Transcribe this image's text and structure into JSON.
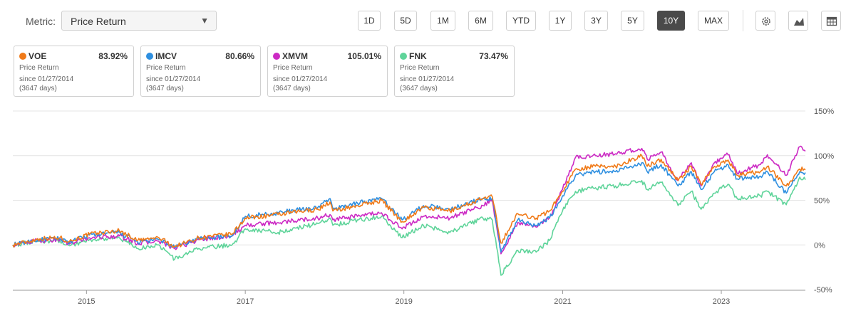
{
  "metric": {
    "label": "Metric:",
    "selected": "Price Return"
  },
  "ranges": [
    {
      "label": "1D",
      "active": false
    },
    {
      "label": "5D",
      "active": false
    },
    {
      "label": "1M",
      "active": false
    },
    {
      "label": "6M",
      "active": false
    },
    {
      "label": "YTD",
      "active": false
    },
    {
      "label": "1Y",
      "active": false
    },
    {
      "label": "3Y",
      "active": false
    },
    {
      "label": "5Y",
      "active": false
    },
    {
      "label": "10Y",
      "active": true
    },
    {
      "label": "MAX",
      "active": false
    }
  ],
  "tools": [
    "settings-icon",
    "area-chart-icon",
    "table-icon"
  ],
  "cards": [
    {
      "ticker": "VOE",
      "ret": "83.92%",
      "metric": "Price Return",
      "since": "since 01/27/2014",
      "days": "(3647 days)",
      "color": "#f07a18"
    },
    {
      "ticker": "IMCV",
      "ret": "80.66%",
      "metric": "Price Return",
      "since": "since 01/27/2014",
      "days": "(3647 days)",
      "color": "#2e8fe0"
    },
    {
      "ticker": "XMVM",
      "ret": "105.01%",
      "metric": "Price Return",
      "since": "since 01/27/2014",
      "days": "(3647 days)",
      "color": "#cc2ac4"
    },
    {
      "ticker": "FNK",
      "ret": "73.47%",
      "metric": "Price Return",
      "since": "since 01/27/2014",
      "days": "(3647 days)",
      "color": "#5fd49a"
    }
  ],
  "chart_data": {
    "type": "line",
    "x_labels": [
      "2015",
      "2017",
      "2019",
      "2021",
      "2023"
    ],
    "y_ticks": [
      150,
      100,
      50,
      0,
      -50
    ],
    "y_tick_labels": [
      "150%",
      "100%",
      "50%",
      "0%",
      "-50%"
    ],
    "ylim": [
      -50,
      150
    ],
    "xlim": [
      "2014-01-27",
      "2024-01-23"
    ],
    "grid": true,
    "series": [
      {
        "name": "VOE",
        "color": "#f07a18",
        "points": [
          [
            "2014-01-27",
            0
          ],
          [
            "2014-06-01",
            7
          ],
          [
            "2014-09-01",
            8
          ],
          [
            "2014-10-15",
            4
          ],
          [
            "2015-01-15",
            12
          ],
          [
            "2015-06-01",
            16
          ],
          [
            "2015-08-25",
            5
          ],
          [
            "2015-12-01",
            8
          ],
          [
            "2016-02-11",
            -2
          ],
          [
            "2016-06-01",
            8
          ],
          [
            "2016-11-01",
            12
          ],
          [
            "2017-01-01",
            30
          ],
          [
            "2017-06-01",
            34
          ],
          [
            "2017-12-01",
            40
          ],
          [
            "2018-01-26",
            48
          ],
          [
            "2018-02-08",
            38
          ],
          [
            "2018-06-01",
            44
          ],
          [
            "2018-09-20",
            50
          ],
          [
            "2018-12-24",
            26
          ],
          [
            "2019-04-01",
            42
          ],
          [
            "2019-08-01",
            38
          ],
          [
            "2019-12-31",
            52
          ],
          [
            "2020-02-12",
            54
          ],
          [
            "2020-03-23",
            2
          ],
          [
            "2020-06-08",
            35
          ],
          [
            "2020-09-01",
            30
          ],
          [
            "2020-11-01",
            38
          ],
          [
            "2020-12-31",
            60
          ],
          [
            "2021-03-01",
            85
          ],
          [
            "2021-06-01",
            88
          ],
          [
            "2021-09-01",
            88
          ],
          [
            "2021-12-31",
            100
          ],
          [
            "2022-01-25",
            88
          ],
          [
            "2022-03-30",
            96
          ],
          [
            "2022-06-16",
            72
          ],
          [
            "2022-08-16",
            88
          ],
          [
            "2022-09-30",
            68
          ],
          [
            "2022-11-30",
            88
          ],
          [
            "2023-02-01",
            95
          ],
          [
            "2023-03-15",
            78
          ],
          [
            "2023-06-30",
            82
          ],
          [
            "2023-08-01",
            88
          ],
          [
            "2023-10-27",
            66
          ],
          [
            "2023-12-28",
            85
          ],
          [
            "2024-01-23",
            84
          ]
        ]
      },
      {
        "name": "IMCV",
        "color": "#2e8fe0",
        "points": [
          [
            "2014-01-27",
            0
          ],
          [
            "2014-06-01",
            6
          ],
          [
            "2014-09-01",
            7
          ],
          [
            "2014-10-15",
            3
          ],
          [
            "2015-01-15",
            11
          ],
          [
            "2015-06-01",
            14
          ],
          [
            "2015-08-25",
            3
          ],
          [
            "2015-12-01",
            6
          ],
          [
            "2016-02-11",
            -3
          ],
          [
            "2016-06-01",
            7
          ],
          [
            "2016-11-01",
            10
          ],
          [
            "2017-01-01",
            32
          ],
          [
            "2017-06-01",
            36
          ],
          [
            "2017-12-01",
            42
          ],
          [
            "2018-01-26",
            52
          ],
          [
            "2018-02-08",
            40
          ],
          [
            "2018-06-01",
            47
          ],
          [
            "2018-09-20",
            52
          ],
          [
            "2018-12-24",
            28
          ],
          [
            "2019-04-01",
            44
          ],
          [
            "2019-08-01",
            40
          ],
          [
            "2019-12-31",
            52
          ],
          [
            "2020-02-12",
            52
          ],
          [
            "2020-03-23",
            -8
          ],
          [
            "2020-06-08",
            28
          ],
          [
            "2020-09-01",
            22
          ],
          [
            "2020-11-01",
            30
          ],
          [
            "2020-12-31",
            55
          ],
          [
            "2021-03-01",
            78
          ],
          [
            "2021-06-01",
            82
          ],
          [
            "2021-09-01",
            82
          ],
          [
            "2021-12-31",
            92
          ],
          [
            "2022-01-25",
            82
          ],
          [
            "2022-03-30",
            90
          ],
          [
            "2022-06-16",
            66
          ],
          [
            "2022-08-16",
            82
          ],
          [
            "2022-09-30",
            62
          ],
          [
            "2022-11-30",
            82
          ],
          [
            "2023-02-01",
            90
          ],
          [
            "2023-03-15",
            74
          ],
          [
            "2023-06-30",
            77
          ],
          [
            "2023-08-01",
            82
          ],
          [
            "2023-10-27",
            58
          ],
          [
            "2023-12-28",
            82
          ],
          [
            "2024-01-23",
            81
          ]
        ]
      },
      {
        "name": "XMVM",
        "color": "#cc2ac4",
        "points": [
          [
            "2014-01-27",
            0
          ],
          [
            "2014-06-01",
            5
          ],
          [
            "2014-09-01",
            6
          ],
          [
            "2014-10-15",
            1
          ],
          [
            "2015-01-15",
            8
          ],
          [
            "2015-06-01",
            10
          ],
          [
            "2015-08-25",
            2
          ],
          [
            "2015-12-01",
            4
          ],
          [
            "2016-02-11",
            -4
          ],
          [
            "2016-06-01",
            6
          ],
          [
            "2016-11-01",
            10
          ],
          [
            "2017-01-01",
            22
          ],
          [
            "2017-06-01",
            25
          ],
          [
            "2017-12-01",
            30
          ],
          [
            "2018-01-26",
            34
          ],
          [
            "2018-02-08",
            28
          ],
          [
            "2018-06-01",
            32
          ],
          [
            "2018-09-20",
            36
          ],
          [
            "2018-12-24",
            18
          ],
          [
            "2019-04-01",
            32
          ],
          [
            "2019-08-01",
            30
          ],
          [
            "2019-12-31",
            44
          ],
          [
            "2020-02-12",
            50
          ],
          [
            "2020-03-23",
            -10
          ],
          [
            "2020-06-08",
            25
          ],
          [
            "2020-09-01",
            20
          ],
          [
            "2020-11-01",
            30
          ],
          [
            "2020-12-31",
            62
          ],
          [
            "2021-03-01",
            98
          ],
          [
            "2021-06-01",
            100
          ],
          [
            "2021-09-01",
            102
          ],
          [
            "2021-12-31",
            108
          ],
          [
            "2022-01-25",
            96
          ],
          [
            "2022-03-30",
            104
          ],
          [
            "2022-06-16",
            72
          ],
          [
            "2022-08-16",
            92
          ],
          [
            "2022-09-30",
            66
          ],
          [
            "2022-11-30",
            92
          ],
          [
            "2023-02-01",
            101
          ],
          [
            "2023-03-15",
            80
          ],
          [
            "2023-06-30",
            90
          ],
          [
            "2023-08-01",
            101
          ],
          [
            "2023-10-27",
            78
          ],
          [
            "2023-12-28",
            110
          ],
          [
            "2024-01-23",
            105
          ]
        ]
      },
      {
        "name": "FNK",
        "color": "#5fd49a",
        "points": [
          [
            "2014-01-27",
            0
          ],
          [
            "2014-06-01",
            4
          ],
          [
            "2014-09-01",
            5
          ],
          [
            "2014-10-15",
            -1
          ],
          [
            "2015-01-15",
            6
          ],
          [
            "2015-06-01",
            8
          ],
          [
            "2015-08-25",
            -4
          ],
          [
            "2015-12-01",
            0
          ],
          [
            "2016-02-11",
            -16
          ],
          [
            "2016-06-01",
            -4
          ],
          [
            "2016-11-01",
            0
          ],
          [
            "2017-01-01",
            18
          ],
          [
            "2017-06-01",
            14
          ],
          [
            "2017-12-01",
            24
          ],
          [
            "2018-01-26",
            30
          ],
          [
            "2018-02-08",
            22
          ],
          [
            "2018-06-01",
            28
          ],
          [
            "2018-09-20",
            32
          ],
          [
            "2018-12-24",
            8
          ],
          [
            "2019-04-01",
            22
          ],
          [
            "2019-08-01",
            14
          ],
          [
            "2019-12-31",
            30
          ],
          [
            "2020-02-12",
            28
          ],
          [
            "2020-03-23",
            -34
          ],
          [
            "2020-06-08",
            -6
          ],
          [
            "2020-09-01",
            -8
          ],
          [
            "2020-11-01",
            5
          ],
          [
            "2020-12-31",
            38
          ],
          [
            "2021-03-01",
            60
          ],
          [
            "2021-06-01",
            64
          ],
          [
            "2021-09-01",
            66
          ],
          [
            "2021-12-31",
            72
          ],
          [
            "2022-01-25",
            62
          ],
          [
            "2022-03-30",
            70
          ],
          [
            "2022-06-16",
            44
          ],
          [
            "2022-08-16",
            60
          ],
          [
            "2022-09-30",
            40
          ],
          [
            "2022-11-30",
            58
          ],
          [
            "2023-02-01",
            68
          ],
          [
            "2023-03-15",
            52
          ],
          [
            "2023-06-30",
            55
          ],
          [
            "2023-08-01",
            60
          ],
          [
            "2023-10-27",
            45
          ],
          [
            "2023-12-28",
            76
          ],
          [
            "2024-01-23",
            73
          ]
        ]
      }
    ]
  }
}
